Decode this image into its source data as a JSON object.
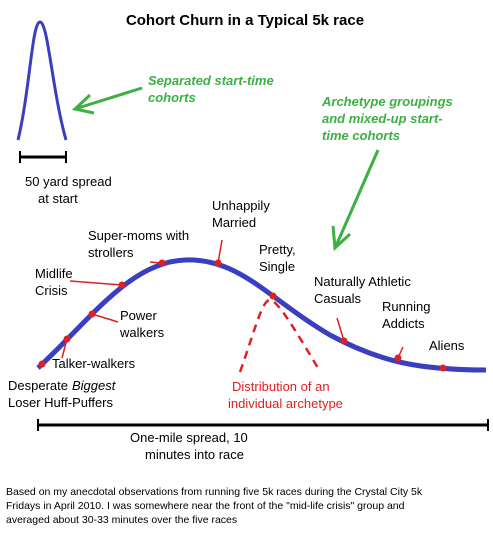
{
  "title": "Cohort Churn in a Typical 5k race",
  "annotations": {
    "start_cohorts": [
      "Separated start-time",
      "cohorts"
    ],
    "archetype_groups": [
      "Archetype groupings",
      "and mixed-up start-",
      "time cohorts"
    ],
    "start_spread": [
      "50 yard spread",
      "at start"
    ],
    "distribution": [
      "Distribution of an",
      "individual archetype"
    ],
    "mile_spread": [
      "One-mile spread, 10",
      "minutes into race"
    ]
  },
  "archetypes": [
    {
      "lines": [
        "Desperate",
        "Loser Huff-Puffers"
      ],
      "emphasis": "Biggest"
    },
    {
      "lines": [
        "Talker-walkers"
      ]
    },
    {
      "lines": [
        "Power",
        "walkers"
      ]
    },
    {
      "lines": [
        "Midlife",
        "Crisis"
      ]
    },
    {
      "lines": [
        "Super-moms with",
        "strollers"
      ]
    },
    {
      "lines": [
        "Unhappily",
        "Married"
      ]
    },
    {
      "lines": [
        "Pretty,",
        "Single"
      ]
    },
    {
      "lines": [
        "Naturally Athletic",
        "Casuals"
      ]
    },
    {
      "lines": [
        "Running",
        "Addicts"
      ]
    },
    {
      "lines": [
        "Aliens"
      ]
    }
  ],
  "footnote": [
    "Based on my anecdotal observations from running five 5k races during the Crystal City 5k",
    "Fridays in April 2010. I was somewhere near the front of the \"mid-life crisis\" group and",
    "averaged about 30-33 minutes over the five races"
  ]
}
